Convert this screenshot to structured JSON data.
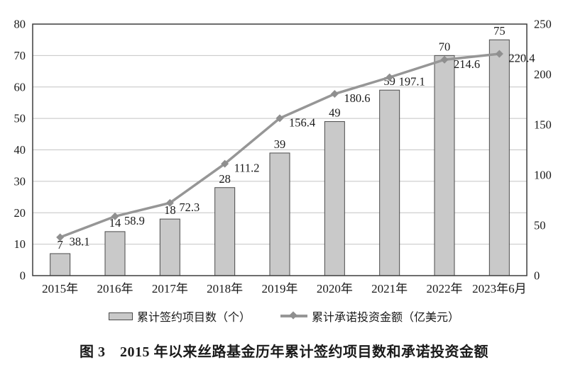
{
  "figure": {
    "caption": "图 3　2015 年以来丝路基金历年累计签约项目数和承诺投资金额"
  },
  "legend": {
    "bars_label": "累计签约项目数（个）",
    "line_label": "累计承诺投资金额（亿美元）"
  },
  "chart_data": {
    "type": "bar",
    "subtype": "bar+line dual-axis",
    "categories": [
      "2015年",
      "2016年",
      "2017年",
      "2018年",
      "2019年",
      "2020年",
      "2021年",
      "2022年",
      "2023年6月"
    ],
    "series": [
      {
        "name": "累计签约项目数（个）",
        "type": "bar",
        "axis": "left",
        "values": [
          7,
          14,
          18,
          28,
          39,
          49,
          59,
          70,
          75
        ]
      },
      {
        "name": "累计承诺投资金额（亿美元）",
        "type": "line",
        "axis": "right",
        "values": [
          38.1,
          58.9,
          72.3,
          111.2,
          156.4,
          180.6,
          197.1,
          214.6,
          220.4
        ]
      }
    ],
    "title": "图 3　2015 年以来丝路基金历年累计签约项目数和承诺投资金额",
    "xlabel": "",
    "ylabel_left": "",
    "ylabel_right": "",
    "left_axis": {
      "min": 0,
      "max": 80,
      "ticks": [
        0,
        10,
        20,
        30,
        40,
        50,
        60,
        70,
        80
      ]
    },
    "right_axis": {
      "min": 0,
      "max": 250,
      "ticks": [
        0,
        50,
        100,
        150,
        200,
        250
      ]
    },
    "grid": true,
    "legend_position": "bottom",
    "data_labels": true
  },
  "colors": {
    "bar_fill": "#c9c9c9",
    "bar_stroke": "#4a4a4a",
    "line": "#969696",
    "marker": "#8f8f8f",
    "grid": "#c4c4c4",
    "plot_border": "#3d3d3d",
    "text": "#1a1a1a",
    "background": "#ffffff"
  }
}
